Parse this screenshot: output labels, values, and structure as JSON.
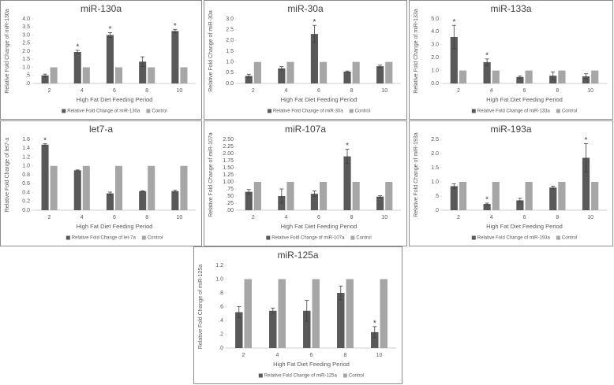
{
  "chart_data": [
    {
      "type": "bar",
      "title": "miR-130a",
      "x_label": "High Fat Diet Feeding Period",
      "y_label": "Relative Fold Change of miR-130a",
      "categories": [
        "2",
        "4",
        "6",
        "8",
        "10"
      ],
      "series": [
        {
          "name": "Relative Fold Change of miR-130a",
          "color": "#595959",
          "values": [
            0.5,
            1.95,
            3.0,
            1.35,
            3.25
          ],
          "errors": [
            0.08,
            0.1,
            0.15,
            0.3,
            0.1
          ]
        },
        {
          "name": "Control",
          "color": "#a6a6a6",
          "values": [
            1,
            1,
            1,
            1,
            1
          ]
        }
      ],
      "markers": [
        null,
        "*",
        "*",
        null,
        "*"
      ],
      "ylim": [
        0,
        4
      ],
      "yticks": [
        {
          "value": 0,
          "label": ".0"
        },
        {
          "value": 0.5,
          "label": ".5"
        },
        {
          "value": 1,
          "label": "1.0"
        },
        {
          "value": 1.5,
          "label": "1.5"
        },
        {
          "value": 2,
          "label": "2.0"
        },
        {
          "value": 2.5,
          "label": "2.5"
        },
        {
          "value": 3,
          "label": "3.0"
        },
        {
          "value": 3.5,
          "label": "3.5"
        },
        {
          "value": 4,
          "label": "4.0"
        }
      ]
    },
    {
      "type": "bar",
      "title": "miR-30a",
      "x_label": "High Fat Diet Feeding Period",
      "y_label": "Relative Fold Change of miR-30a",
      "categories": [
        "2",
        "4",
        "6",
        "8",
        "10"
      ],
      "series": [
        {
          "name": "Relative Fold Change of miR-30a",
          "color": "#595959",
          "values": [
            0.35,
            0.7,
            2.3,
            0.55,
            0.8
          ],
          "errors": [
            0.08,
            0.08,
            0.4,
            0.03,
            0.05
          ]
        },
        {
          "name": "Control",
          "color": "#a6a6a6",
          "values": [
            1,
            1,
            1,
            1,
            1
          ]
        }
      ],
      "markers": [
        null,
        null,
        "*",
        null,
        null
      ],
      "ylim": [
        0,
        3
      ],
      "yticks": [
        {
          "value": 0,
          "label": "0.0"
        },
        {
          "value": 0.5,
          "label": "0.5"
        },
        {
          "value": 1,
          "label": "1.0"
        },
        {
          "value": 1.5,
          "label": "1.5"
        },
        {
          "value": 2,
          "label": "2.0"
        },
        {
          "value": 2.5,
          "label": "2.5"
        },
        {
          "value": 3,
          "label": "3.0"
        }
      ]
    },
    {
      "type": "bar",
      "title": "miR-133a",
      "x_label": "High Fat Diet Feeding Period",
      "y_label": "Relative Fold Change of miR-133a",
      "categories": [
        "2",
        "4",
        "6",
        "8",
        "10"
      ],
      "series": [
        {
          "name": "Relative Fold Change of miR-133a",
          "color": "#595959",
          "values": [
            3.6,
            1.65,
            0.5,
            0.6,
            0.55
          ],
          "errors": [
            0.9,
            0.25,
            0.08,
            0.3,
            0.2
          ]
        },
        {
          "name": "Control",
          "color": "#a6a6a6",
          "values": [
            1,
            1,
            1,
            1,
            1
          ]
        }
      ],
      "markers": [
        "*",
        "*",
        null,
        null,
        null
      ],
      "ylim": [
        0,
        5
      ],
      "yticks": [
        {
          "value": 0,
          "label": "0.0"
        },
        {
          "value": 1,
          "label": "1.0"
        },
        {
          "value": 2,
          "label": "2.0"
        },
        {
          "value": 3,
          "label": "3.0"
        },
        {
          "value": 4,
          "label": "4.0"
        },
        {
          "value": 5,
          "label": "5.0"
        }
      ]
    },
    {
      "type": "bar",
      "title": "let7-a",
      "x_label": "High Fat Diet Feeding Period",
      "y_label": "Relative Fold Change of let7-a",
      "categories": [
        "2",
        "4",
        "6",
        "8",
        "10"
      ],
      "series": [
        {
          "name": "Relative Fold Change of let-7a",
          "color": "#595959",
          "values": [
            1.48,
            0.9,
            0.38,
            0.43,
            0.43
          ],
          "errors": [
            0.02,
            0.01,
            0.03,
            0.01,
            0.02
          ]
        },
        {
          "name": "Control",
          "color": "#a6a6a6",
          "values": [
            1,
            1,
            1,
            1,
            1
          ]
        }
      ],
      "markers": [
        "*",
        null,
        null,
        null,
        null
      ],
      "ylim": [
        0,
        1.6
      ],
      "yticks": [
        {
          "value": 0,
          "label": "0.0"
        },
        {
          "value": 0.2,
          "label": "0.2"
        },
        {
          "value": 0.4,
          "label": "0.4"
        },
        {
          "value": 0.6,
          "label": "0.6"
        },
        {
          "value": 0.8,
          "label": "0.8"
        },
        {
          "value": 1,
          "label": "1.0"
        },
        {
          "value": 1.2,
          "label": "1.2"
        },
        {
          "value": 1.4,
          "label": "1.4"
        },
        {
          "value": 1.6,
          "label": "1.6"
        }
      ]
    },
    {
      "type": "bar",
      "title": "miR-107a",
      "x_label": "High Fat Diet Feeding Period",
      "y_label": "Relative Fold Change of miR-107a",
      "categories": [
        "2",
        "4",
        "6",
        "8",
        "10"
      ],
      "series": [
        {
          "name": "Relative Fold Change of miR-107a",
          "color": "#595959",
          "values": [
            0.65,
            0.5,
            0.58,
            1.9,
            0.48
          ],
          "errors": [
            0.08,
            0.25,
            0.1,
            0.25,
            0.03
          ]
        },
        {
          "name": "Control",
          "color": "#a6a6a6",
          "values": [
            1,
            1,
            1,
            1,
            1
          ]
        }
      ],
      "markers": [
        null,
        null,
        null,
        "*",
        null
      ],
      "ylim": [
        0,
        2.5
      ],
      "yticks": [
        {
          "value": 0,
          "label": ".00"
        },
        {
          "value": 0.25,
          "label": ".25"
        },
        {
          "value": 0.5,
          "label": ".50"
        },
        {
          "value": 0.75,
          "label": ".75"
        },
        {
          "value": 1,
          "label": "1.00"
        },
        {
          "value": 1.25,
          "label": "1.25"
        },
        {
          "value": 1.5,
          "label": "1.50"
        },
        {
          "value": 1.75,
          "label": "1.75"
        },
        {
          "value": 2,
          "label": "2.00"
        },
        {
          "value": 2.25,
          "label": "2.25"
        },
        {
          "value": 2.5,
          "label": "2.50"
        }
      ]
    },
    {
      "type": "bar",
      "title": "miR-193a",
      "x_label": "High Fat Diet Feeding Period",
      "y_label": "Relative Fold Change of miR-193a",
      "categories": [
        "2",
        "4",
        "6",
        "8",
        "10"
      ],
      "series": [
        {
          "name": "Relative Fold Change of miR-193a",
          "color": "#595959",
          "values": [
            0.85,
            0.22,
            0.35,
            0.8,
            1.85
          ],
          "errors": [
            0.08,
            0.03,
            0.07,
            0.05,
            0.5
          ]
        },
        {
          "name": "Control",
          "color": "#a6a6a6",
          "values": [
            1,
            1,
            1,
            1,
            1
          ]
        }
      ],
      "markers": [
        null,
        "*",
        null,
        null,
        "*"
      ],
      "ylim": [
        0,
        2.5
      ],
      "yticks": [
        {
          "value": 0,
          "label": ".0"
        },
        {
          "value": 0.5,
          "label": ".5"
        },
        {
          "value": 1,
          "label": "1.0"
        },
        {
          "value": 1.5,
          "label": "1.5"
        },
        {
          "value": 2,
          "label": "2.0"
        },
        {
          "value": 2.5,
          "label": "2.5"
        }
      ]
    },
    {
      "type": "bar",
      "title": "miR-125a",
      "x_label": "High Fat Diet Feeding Period",
      "y_label": "Relative Fold Change of miR-125a",
      "categories": [
        "2",
        "4",
        "6",
        "8",
        "10"
      ],
      "series": [
        {
          "name": "Relative Fold Change of miR-125a",
          "color": "#595959",
          "values": [
            0.52,
            0.54,
            0.54,
            0.8,
            0.23
          ],
          "errors": [
            0.08,
            0.04,
            0.15,
            0.1,
            0.08
          ]
        },
        {
          "name": "Control",
          "color": "#a6a6a6",
          "values": [
            1,
            1,
            1,
            1,
            1
          ]
        }
      ],
      "markers": [
        null,
        null,
        null,
        null,
        "*"
      ],
      "ylim": [
        0,
        1.2
      ],
      "yticks": [
        {
          "value": 0,
          "label": ".0"
        },
        {
          "value": 0.2,
          "label": ".2"
        },
        {
          "value": 0.4,
          "label": ".4"
        },
        {
          "value": 0.6,
          "label": ".6"
        },
        {
          "value": 0.8,
          "label": ".8"
        },
        {
          "value": 1,
          "label": "1.0"
        },
        {
          "value": 1.2,
          "label": "1.2"
        }
      ]
    }
  ]
}
